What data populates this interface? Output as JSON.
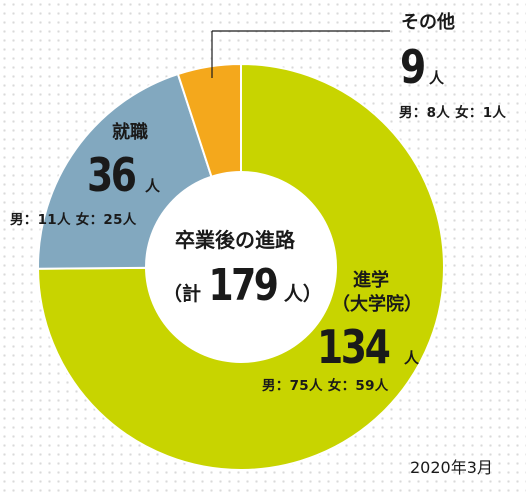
{
  "chart_data": {
    "type": "pie",
    "variant": "donut",
    "center": {
      "title": "卒業後の進路",
      "total_prefix": "（計",
      "total_value": "179",
      "total_suffix": "人）"
    },
    "slices": [
      {
        "label": "進学",
        "label2": "（大学院）",
        "value": 134,
        "value_text": "134",
        "unit": "人",
        "detail": "男：75人  女：59人",
        "color": "#c8d400"
      },
      {
        "label": "就職",
        "value": 36,
        "value_text": "36",
        "unit": "人",
        "detail": "男：11人  女：25人",
        "color": "#82a8bf"
      },
      {
        "label": "その他",
        "value": 9,
        "value_text": "9",
        "unit": "人",
        "detail": "男：8人  女：1人",
        "color": "#f4a81c"
      }
    ],
    "date": "2020年3月"
  }
}
